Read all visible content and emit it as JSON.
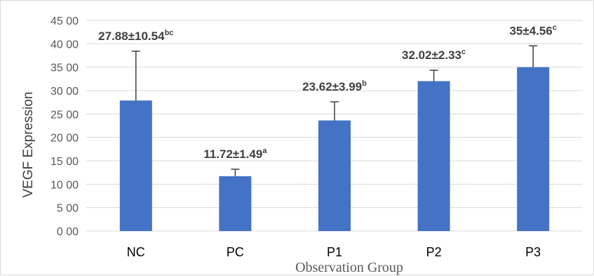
{
  "chart_data": {
    "type": "bar",
    "title": "",
    "xlabel": "Observation  Group",
    "ylabel": "VEGF Expression",
    "categories": [
      "NC",
      "PC",
      "P1",
      "P2",
      "P3"
    ],
    "values": [
      27.88,
      11.72,
      23.62,
      32.02,
      35
    ],
    "errors": [
      10.54,
      1.49,
      3.99,
      2.33,
      4.56
    ],
    "data_labels": [
      {
        "text": "27.88±10.54",
        "sup": "bc"
      },
      {
        "text": "11.72±1.49",
        "sup": "a"
      },
      {
        "text": "23.62±3.99",
        "sup": "b"
      },
      {
        "text": "32.02±2.33",
        "sup": "c"
      },
      {
        "text": "35±4.56",
        "sup": "c"
      }
    ],
    "ylim": [
      0,
      45
    ],
    "ytick_values": [
      0,
      5,
      10,
      15,
      20,
      25,
      30,
      35,
      40,
      45
    ],
    "ytick_labels": [
      "0 00",
      "5 00",
      "10 00",
      "15 00",
      "20 00",
      "25 00",
      "30 00",
      "35 00",
      "40 00",
      "45 00"
    ],
    "grid": true,
    "legend": "none",
    "colors": {
      "bar": "#4472C4",
      "error_bar": "#404040",
      "grid": "#d9d9d9",
      "frame": "#d9d9d9"
    }
  }
}
